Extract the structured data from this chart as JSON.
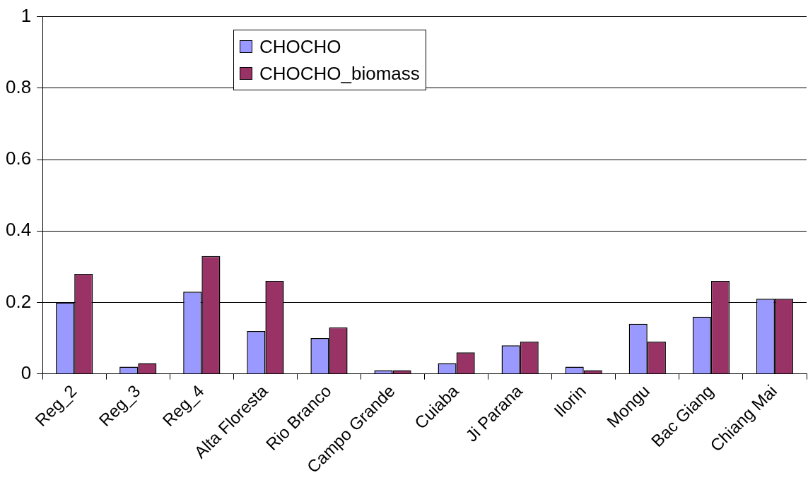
{
  "chart_data": {
    "type": "bar",
    "categories": [
      "Reg_2",
      "Reg_3",
      "Reg_4",
      "Alta Floresta",
      "Rio Branco",
      "Campo Grande",
      "Cuiaba",
      "Ji Parana",
      "Ilorin",
      "Mongu",
      "Bac Giang",
      "Chiang Mai"
    ],
    "series": [
      {
        "name": "CHOCHO",
        "color": "#9999ff",
        "values": [
          0.2,
          0.02,
          0.23,
          0.12,
          0.1,
          0.01,
          0.03,
          0.08,
          0.02,
          0.14,
          0.16,
          0.21
        ]
      },
      {
        "name": "CHOCHO_biomass",
        "color": "#993366",
        "values": [
          0.28,
          0.03,
          0.33,
          0.26,
          0.13,
          0.01,
          0.06,
          0.09,
          0.01,
          0.09,
          0.26,
          0.21
        ]
      }
    ],
    "ylim": [
      0,
      1
    ],
    "yticks": [
      0,
      0.2,
      0.4,
      0.6,
      0.8,
      1
    ],
    "grid": "y",
    "legend": "top"
  }
}
